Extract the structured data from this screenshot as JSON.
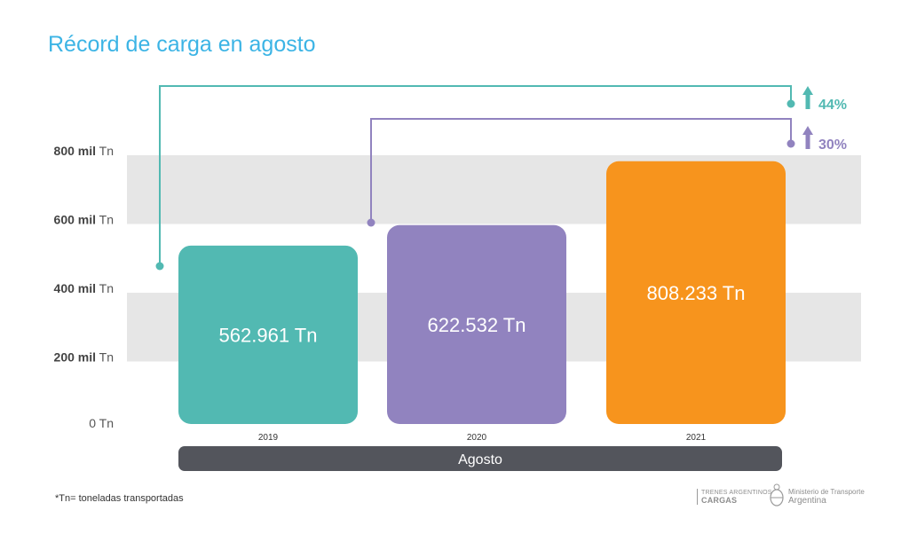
{
  "title": "Récord de carga en agosto",
  "footnote": "*Tn= toneladas transportadas",
  "group_label": "Agosto",
  "logos": {
    "cargas_small": "TRENES ARGENTINOS",
    "cargas_big": "CARGAS",
    "ministry_small": "Ministerio de Transporte",
    "ministry_big": "Argentina"
  },
  "chart_data": {
    "type": "bar",
    "categories": [
      "2019",
      "2020",
      "2021"
    ],
    "values": [
      562961,
      622532,
      808233
    ],
    "value_labels": [
      "562.961 Tn",
      "622.532 Tn",
      "808.233 Tn"
    ],
    "colors": [
      "#52b9b2",
      "#9183bf",
      "#f7941d"
    ],
    "ylim": [
      0,
      800000
    ],
    "yticks": [
      {
        "value": 0,
        "bold": "",
        "unit": "0 Tn"
      },
      {
        "value": 200000,
        "bold": "200 mil",
        "unit": " Tn"
      },
      {
        "value": 400000,
        "bold": "400 mil",
        "unit": " Tn"
      },
      {
        "value": 600000,
        "bold": "600 mil",
        "unit": " Tn"
      },
      {
        "value": 800000,
        "bold": "800 mil",
        "unit": " Tn"
      }
    ],
    "annotations": [
      {
        "from": "2019",
        "to": "2021",
        "text": "44%",
        "color": "#52b9b2"
      },
      {
        "from": "2020",
        "to": "2021",
        "text": "30%",
        "color": "#9183bf"
      }
    ]
  }
}
